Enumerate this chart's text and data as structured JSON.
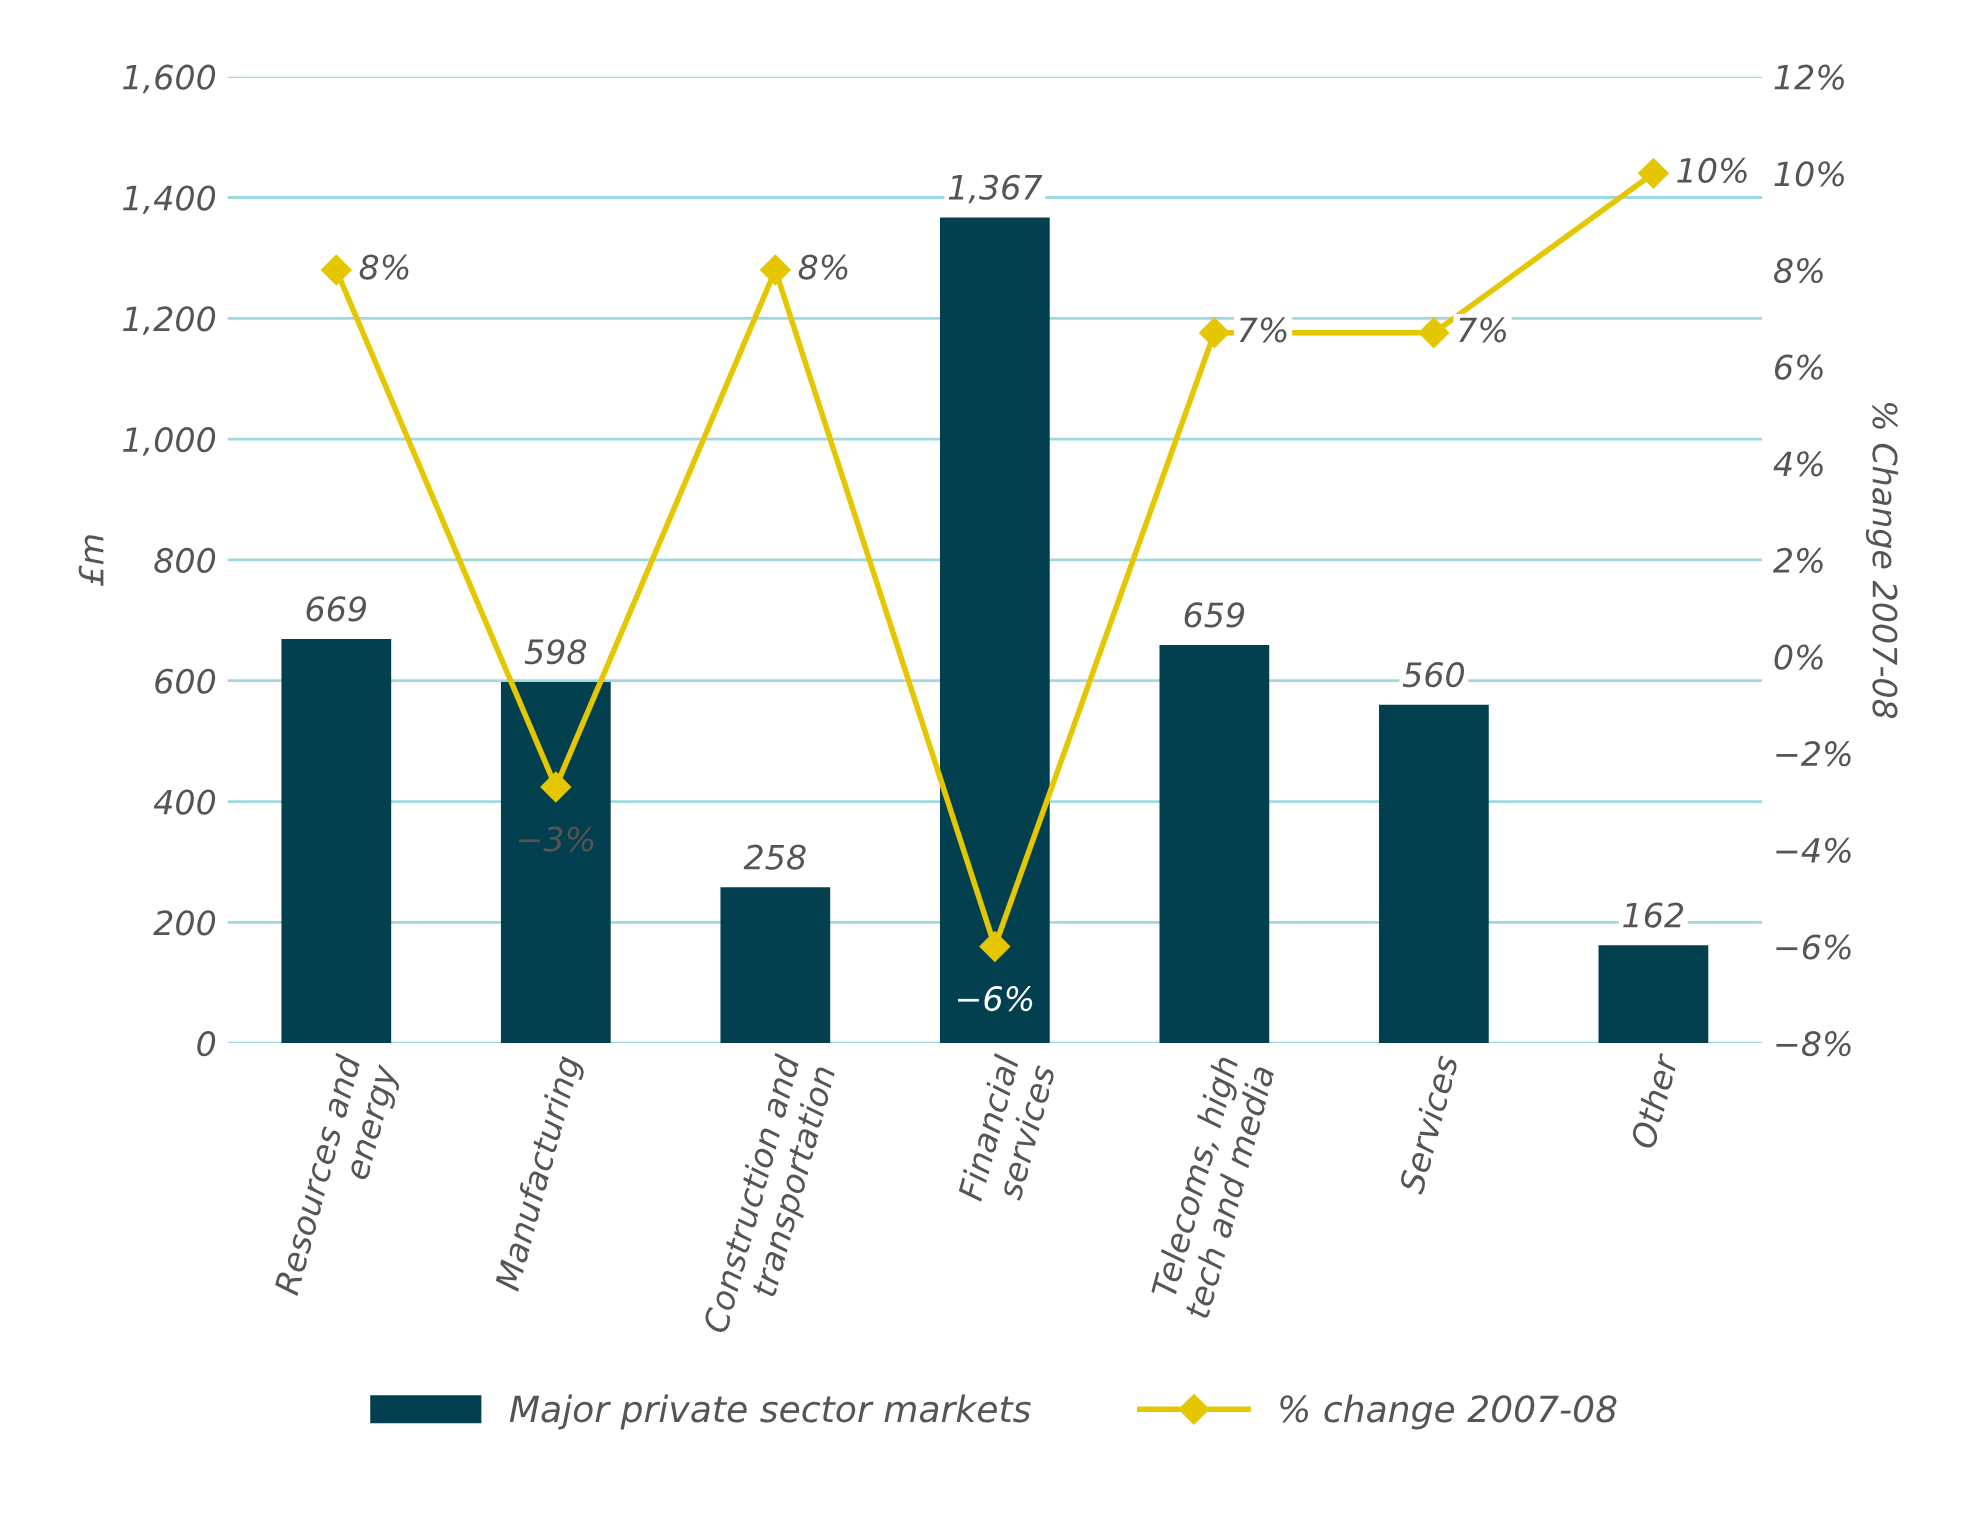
{
  "chart_data": {
    "type": "bar",
    "ylabel": "£m",
    "y2label": "% Change 2007-08",
    "categories": [
      "Resources and\nenergy",
      "Manufacturing",
      "Construction and\ntransportation",
      "Financial\nservices",
      "Telecoms, high\ntech and media",
      "Services",
      "Other"
    ],
    "series": [
      {
        "name": "Major private sector markets",
        "color": "#023f4f",
        "values": [
          669,
          598,
          258,
          1367,
          659,
          560,
          162
        ],
        "value_labels": [
          "669",
          "598",
          "258",
          "1,367",
          "659",
          "560",
          "162"
        ]
      },
      {
        "name": "% change 2007-08",
        "type": "line",
        "axis": "y2",
        "color": "#e5c700",
        "marker": "diamond",
        "values": [
          8,
          -2.7,
          8,
          -6,
          6.7,
          6.7,
          10
        ],
        "value_labels": [
          "8%",
          "−3%",
          "8%",
          "−6%",
          "7%",
          "7%",
          "10%"
        ]
      }
    ],
    "ylim": [
      0,
      1600
    ],
    "yticks": [
      0,
      {
        "value": 200,
        "label": "200"
      },
      {
        "value": 400,
        "label": "400"
      },
      {
        "value": 600,
        "label": "600"
      },
      {
        "value": 800,
        "label": "800"
      },
      {
        "value": 1000,
        "label": "1,000"
      },
      {
        "value": 1200,
        "label": "1,200"
      },
      {
        "value": 1400,
        "label": "1,400"
      },
      {
        "value": 1600,
        "label": "1,600"
      }
    ],
    "y2lim": [
      -8,
      12
    ],
    "y2ticks": [
      {
        "value": -8,
        "label": "−8%"
      },
      {
        "value": -6,
        "label": "−6%"
      },
      {
        "value": -4,
        "label": "−4%"
      },
      {
        "value": -2,
        "label": "−2%"
      },
      {
        "value": 0,
        "label": "0%"
      },
      {
        "value": 2,
        "label": "2%"
      },
      {
        "value": 4,
        "label": "4%"
      },
      {
        "value": 6,
        "label": "6%"
      },
      {
        "value": 8,
        "label": "8%"
      },
      {
        "value": 10,
        "label": "10%"
      },
      {
        "value": 12,
        "label": "12%"
      }
    ],
    "grid": "y",
    "legend": "bottom"
  }
}
